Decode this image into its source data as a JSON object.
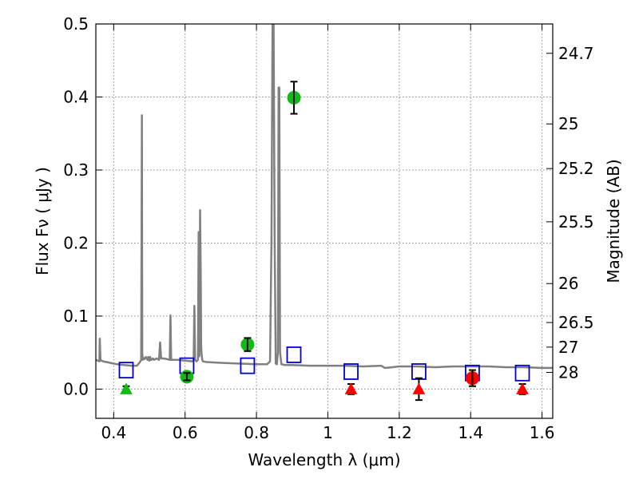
{
  "chart_data": {
    "type": "scatter",
    "title": "",
    "xlabel": "Wavelength  λ (μm)",
    "ylabel": "Flux  Fν  ( μJy )",
    "ylabel_right": "Magnitude (AB)",
    "xlim": [
      0.35,
      1.63
    ],
    "ylim": [
      -0.04,
      0.5
    ],
    "grid": true,
    "legend": "none",
    "x_ticks": [
      {
        "value": 0.4,
        "label": "0.4"
      },
      {
        "value": 0.6,
        "label": "0.6"
      },
      {
        "value": 0.8,
        "label": "0.8"
      },
      {
        "value": 1.0,
        "label": "1"
      },
      {
        "value": 1.2,
        "label": "1.2"
      },
      {
        "value": 1.4,
        "label": "1.4"
      },
      {
        "value": 1.6,
        "label": "1.6"
      }
    ],
    "y_ticks": [
      {
        "value": 0.0,
        "label": "0.0"
      },
      {
        "value": 0.1,
        "label": "0.1"
      },
      {
        "value": 0.2,
        "label": "0.2"
      },
      {
        "value": 0.3,
        "label": "0.3"
      },
      {
        "value": 0.4,
        "label": "0.4"
      },
      {
        "value": 0.5,
        "label": "0.5"
      }
    ],
    "right_ticks": [
      {
        "flux": 0.4598,
        "label": "24.7"
      },
      {
        "flux": 0.3631,
        "label": "25"
      },
      {
        "flux": 0.302,
        "label": "25.2"
      },
      {
        "flux": 0.2291,
        "label": "25.5"
      },
      {
        "flux": 0.1445,
        "label": "26"
      },
      {
        "flux": 0.0912,
        "label": "26.5"
      },
      {
        "flux": 0.0575,
        "label": "27"
      },
      {
        "flux": 0.0229,
        "label": "28"
      }
    ],
    "colors": {
      "model": "#808080",
      "model_photometry": "#0000cc",
      "detection": "#11bb11",
      "non_detection": "#ff0000",
      "grid": "#888888",
      "errorbar": "#000000"
    },
    "series": [
      {
        "role": "model_spectrum",
        "style": "line",
        "x": [
          0.35,
          0.36,
          0.361,
          0.363,
          0.365,
          0.367,
          0.37,
          0.39,
          0.41,
          0.43,
          0.45,
          0.465,
          0.472,
          0.477,
          0.479,
          0.48,
          0.481,
          0.483,
          0.486,
          0.49,
          0.495,
          0.497,
          0.5,
          0.502,
          0.505,
          0.508,
          0.51,
          0.513,
          0.52,
          0.527,
          0.53,
          0.533,
          0.54,
          0.55,
          0.557,
          0.559,
          0.561,
          0.565,
          0.58,
          0.6,
          0.62,
          0.624,
          0.626,
          0.628,
          0.632,
          0.636,
          0.638,
          0.64,
          0.642,
          0.644,
          0.645,
          0.646,
          0.648,
          0.65,
          0.66,
          0.7,
          0.75,
          0.8,
          0.83,
          0.838,
          0.842,
          0.845,
          0.848,
          0.851,
          0.854,
          0.857,
          0.86,
          0.862,
          0.864,
          0.866,
          0.87,
          0.88,
          0.9,
          0.95,
          1.0,
          1.05,
          1.1,
          1.15,
          1.16,
          1.18,
          1.2,
          1.25,
          1.3,
          1.35,
          1.4,
          1.45,
          1.5,
          1.55,
          1.6,
          1.63
        ],
        "y": [
          0.04,
          0.038,
          0.069,
          0.04,
          0.039,
          0.039,
          0.038,
          0.036,
          0.034,
          0.033,
          0.032,
          0.032,
          0.036,
          0.04,
          0.375,
          0.05,
          0.04,
          0.043,
          0.041,
          0.044,
          0.04,
          0.044,
          0.039,
          0.044,
          0.04,
          0.041,
          0.042,
          0.04,
          0.042,
          0.04,
          0.064,
          0.042,
          0.042,
          0.041,
          0.04,
          0.101,
          0.04,
          0.04,
          0.04,
          0.039,
          0.038,
          0.04,
          0.114,
          0.04,
          0.038,
          0.04,
          0.215,
          0.045,
          0.245,
          0.15,
          0.06,
          0.05,
          0.04,
          0.038,
          0.037,
          0.036,
          0.035,
          0.034,
          0.034,
          0.038,
          0.2,
          0.5,
          0.5,
          0.2,
          0.035,
          0.034,
          0.05,
          0.413,
          0.413,
          0.05,
          0.034,
          0.033,
          0.033,
          0.032,
          0.032,
          0.032,
          0.031,
          0.032,
          0.029,
          0.03,
          0.031,
          0.031,
          0.03,
          0.031,
          0.031,
          0.031,
          0.03,
          0.03,
          0.029,
          0.029
        ]
      },
      {
        "role": "model_photometry",
        "style": "open-square",
        "x": [
          0.435,
          0.605,
          0.775,
          0.905,
          1.065,
          1.255,
          1.405,
          1.545
        ],
        "y": [
          0.026,
          0.032,
          0.032,
          0.047,
          0.024,
          0.024,
          0.022,
          0.022
        ]
      },
      {
        "role": "detections",
        "style": "filled-circle",
        "x": [
          0.605,
          0.775,
          0.905
        ],
        "y": [
          0.017,
          0.061,
          0.399
        ],
        "yerr": [
          0.005,
          0.009,
          0.022
        ]
      },
      {
        "role": "upper_limit_detected_band",
        "style": "filled-triangle",
        "x": [
          0.435
        ],
        "y": [
          0.0
        ],
        "yerr": [
          0.004
        ]
      },
      {
        "role": "non_detections",
        "style": "filled-triangle",
        "x": [
          1.065,
          1.255,
          1.545
        ],
        "y": [
          0.0,
          0.0,
          0.0
        ],
        "yerr": [
          0.007,
          0.015,
          0.007
        ]
      },
      {
        "role": "marginal_detection",
        "style": "filled-circle",
        "x": [
          1.405
        ],
        "y": [
          0.015
        ],
        "yerr": [
          0.011
        ]
      }
    ]
  }
}
